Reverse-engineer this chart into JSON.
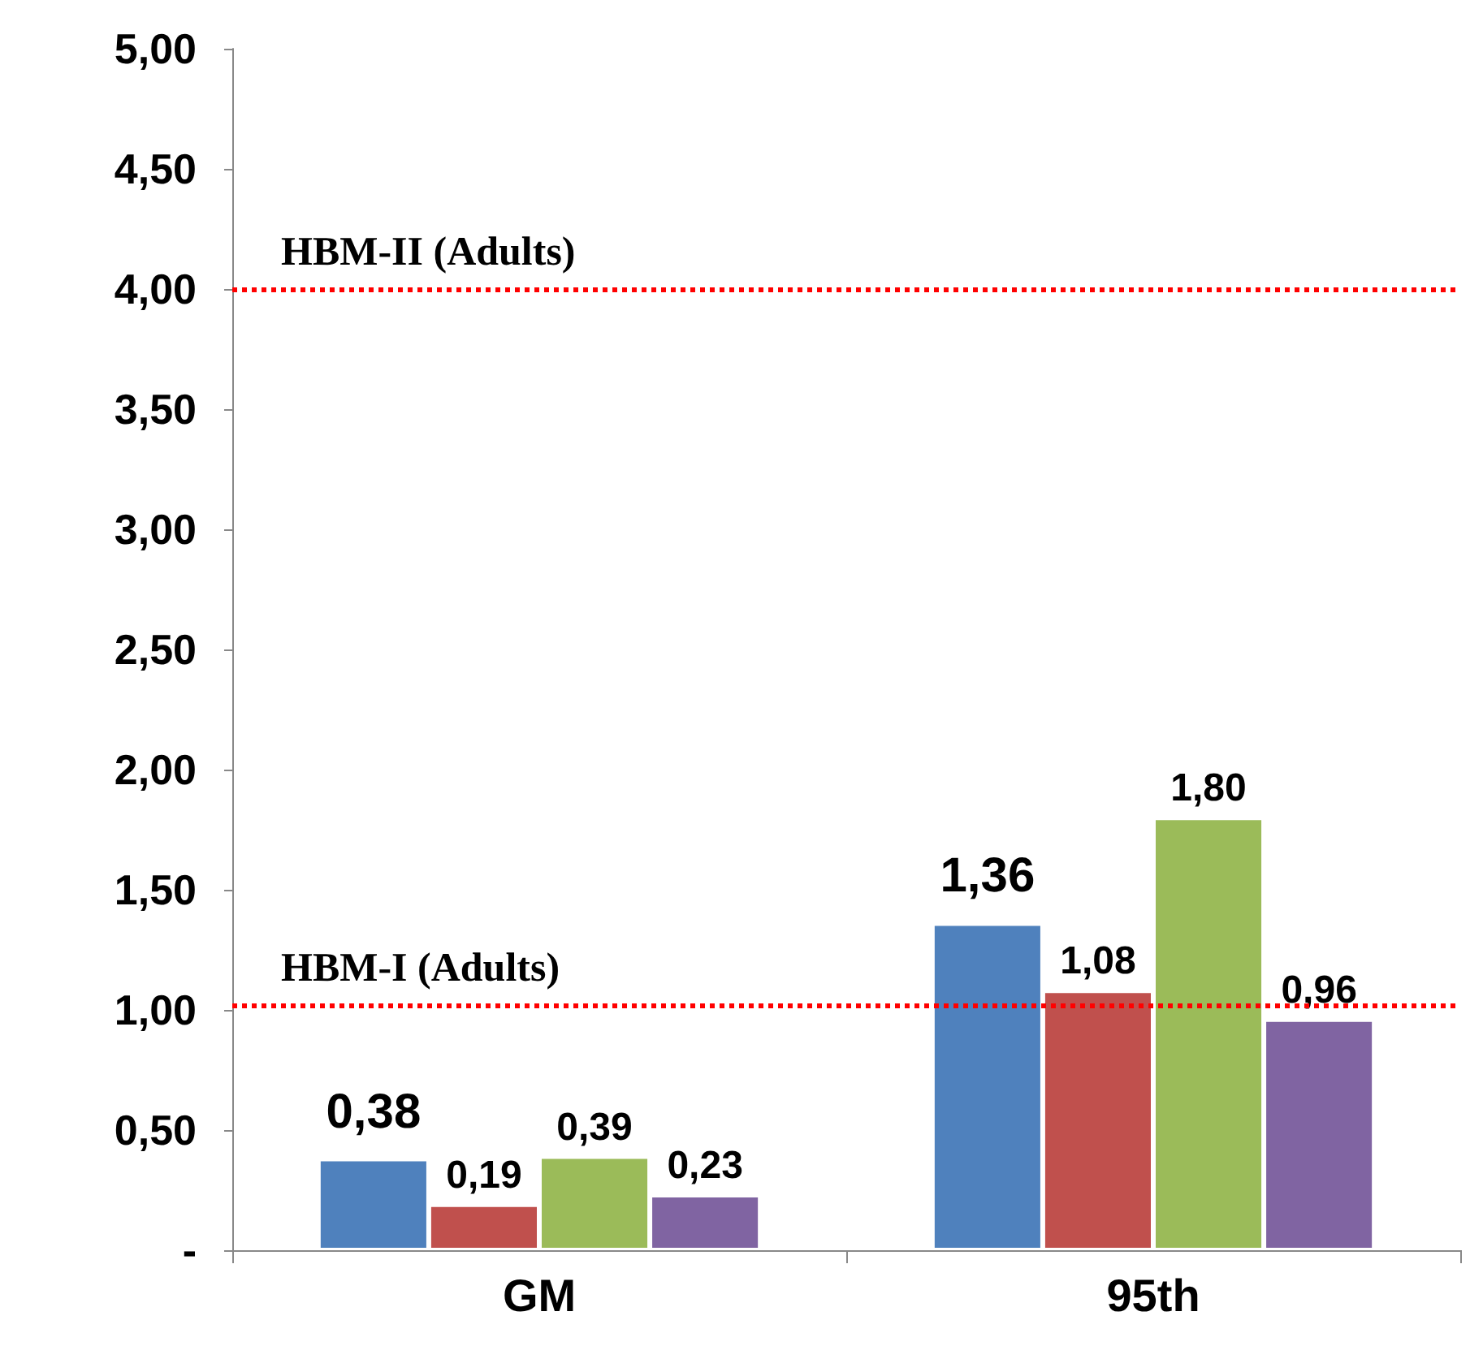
{
  "chart_data": {
    "type": "bar",
    "categories": [
      "GM",
      "95th"
    ],
    "series": [
      {
        "color": "#4f81bd",
        "values": [
          0.38,
          1.36
        ],
        "value_labels": [
          "0,38",
          "1,36"
        ]
      },
      {
        "color": "#c0504d",
        "values": [
          0.19,
          1.08
        ],
        "value_labels": [
          "0,19",
          "1,08"
        ]
      },
      {
        "color": "#9bbb59",
        "values": [
          0.39,
          1.8
        ],
        "value_labels": [
          "0,39",
          "1,80"
        ]
      },
      {
        "color": "#8064a2",
        "values": [
          0.23,
          0.96
        ],
        "value_labels": [
          "0,23",
          "0,96"
        ]
      }
    ],
    "ylim": [
      0,
      5
    ],
    "yticks": [
      {
        "value": 0,
        "label": "-"
      },
      {
        "value": 0.5,
        "label": "0,50"
      },
      {
        "value": 1,
        "label": "1,00"
      },
      {
        "value": 1.5,
        "label": "1,50"
      },
      {
        "value": 2,
        "label": "2,00"
      },
      {
        "value": 2.5,
        "label": "2,50"
      },
      {
        "value": 3,
        "label": "3,00"
      },
      {
        "value": 3.5,
        "label": "3,50"
      },
      {
        "value": 4,
        "label": "4,00"
      },
      {
        "value": 4.5,
        "label": "4,50"
      },
      {
        "value": 5,
        "label": "5,00"
      }
    ],
    "ref_lines": [
      {
        "axis": "y",
        "value": 4,
        "label": "HBM-II (Adults)",
        "color": "#ff0000",
        "line_style": "dotted"
      },
      {
        "axis": "y",
        "value": 1.02,
        "label": "HBM-I (Adults)",
        "color": "#ff0000",
        "line_style": "dotted"
      }
    ],
    "grid": false
  }
}
